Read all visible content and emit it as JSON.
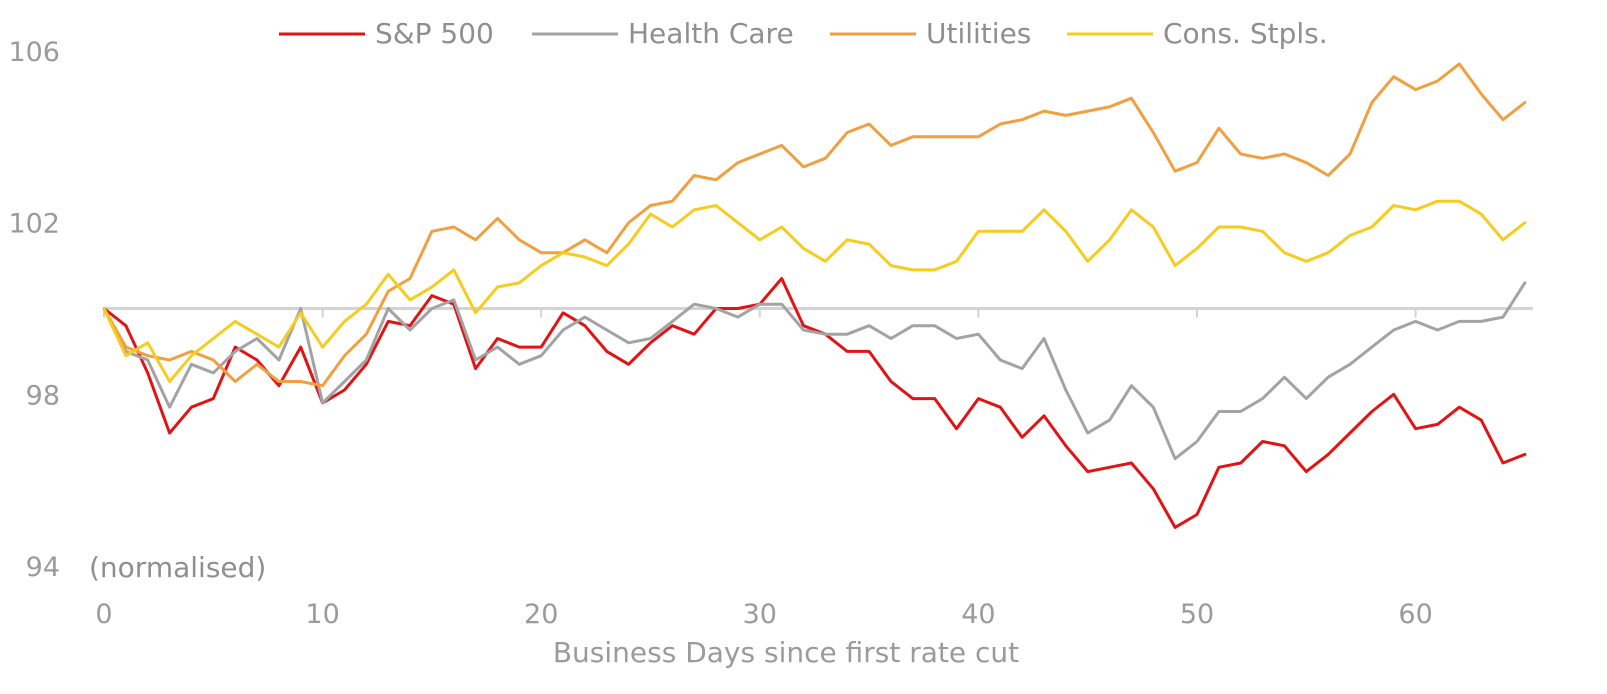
{
  "chart_data": {
    "type": "line",
    "xlabel": "Business Days since first rate cut",
    "annotation": "(normalised)",
    "xlim": [
      0,
      65
    ],
    "ylim": [
      94,
      106
    ],
    "x_ticks": [
      0,
      10,
      20,
      30,
      40,
      50,
      60
    ],
    "y_ticks": [
      94,
      98,
      102,
      106
    ],
    "baseline": 100,
    "grid": false,
    "legend_position": "top",
    "series": [
      {
        "name": "S&P 500",
        "color": "#e01414",
        "values": [
          100,
          99.6,
          98.5,
          97.1,
          97.7,
          97.9,
          99.1,
          98.8,
          98.2,
          99.1,
          97.8,
          98.1,
          98.7,
          99.7,
          99.6,
          100.3,
          100.1,
          98.6,
          99.3,
          99.1,
          99.1,
          99.9,
          99.6,
          99.0,
          98.7,
          99.2,
          99.6,
          99.4,
          100,
          100,
          100.1,
          100.7,
          99.6,
          99.4,
          99.0,
          99.0,
          98.3,
          97.9,
          97.9,
          97.2,
          97.9,
          97.7,
          97.0,
          97.5,
          96.8,
          96.2,
          96.3,
          96.4,
          95.8,
          94.9,
          95.2,
          96.3,
          96.4,
          96.9,
          96.8,
          96.2,
          96.6,
          97.1,
          97.6,
          98.0,
          97.2,
          97.3,
          97.7,
          97.4,
          96.4,
          96.6
        ]
      },
      {
        "name": "Health Care",
        "color": "#a3a3a3",
        "values": [
          100,
          99.0,
          98.8,
          97.7,
          98.7,
          98.5,
          99.0,
          99.3,
          98.8,
          100,
          97.8,
          98.3,
          98.8,
          100,
          99.5,
          100,
          100.2,
          98.8,
          99.1,
          98.7,
          98.9,
          99.5,
          99.8,
          99.5,
          99.2,
          99.3,
          99.7,
          100.1,
          100,
          99.8,
          100.1,
          100.1,
          99.5,
          99.4,
          99.4,
          99.6,
          99.3,
          99.6,
          99.6,
          99.3,
          99.4,
          98.8,
          98.6,
          99.3,
          98.1,
          97.1,
          97.4,
          98.2,
          97.7,
          96.5,
          96.9,
          97.6,
          97.6,
          97.9,
          98.4,
          97.9,
          98.4,
          98.7,
          99.1,
          99.5,
          99.7,
          99.5,
          99.7,
          99.7,
          99.8,
          100.6
        ]
      },
      {
        "name": "Utilities",
        "color": "#f0a040",
        "values": [
          100,
          99.1,
          98.9,
          98.8,
          99.0,
          98.8,
          98.3,
          98.7,
          98.3,
          98.3,
          98.2,
          98.9,
          99.4,
          100.4,
          100.7,
          101.8,
          101.9,
          101.6,
          102.1,
          101.6,
          101.3,
          101.3,
          101.6,
          101.3,
          102.0,
          102.4,
          102.5,
          103.1,
          103.0,
          103.4,
          103.6,
          103.8,
          103.3,
          103.5,
          104.1,
          104.3,
          103.8,
          104.0,
          104.0,
          104.0,
          104.0,
          104.3,
          104.4,
          104.6,
          104.5,
          104.6,
          104.7,
          104.9,
          104.1,
          103.2,
          103.4,
          104.2,
          103.6,
          103.5,
          103.6,
          103.4,
          103.1,
          103.6,
          104.8,
          105.4,
          105.1,
          105.3,
          105.7,
          105.0,
          104.4,
          104.8
        ]
      },
      {
        "name": "Cons. Stpls.",
        "color": "#f5cc1f",
        "values": [
          100,
          98.9,
          99.2,
          98.3,
          98.9,
          99.3,
          99.7,
          99.4,
          99.1,
          99.9,
          99.1,
          99.7,
          100.1,
          100.8,
          100.2,
          100.5,
          100.9,
          99.9,
          100.5,
          100.6,
          101.0,
          101.3,
          101.2,
          101.0,
          101.5,
          102.2,
          101.9,
          102.3,
          102.4,
          102.0,
          101.6,
          101.9,
          101.4,
          101.1,
          101.6,
          101.5,
          101.0,
          100.9,
          100.9,
          101.1,
          101.8,
          101.8,
          101.8,
          102.3,
          101.8,
          101.1,
          101.6,
          102.3,
          101.9,
          101.0,
          101.4,
          101.9,
          101.9,
          101.8,
          101.3,
          101.1,
          101.3,
          101.7,
          101.9,
          102.4,
          102.3,
          102.5,
          102.5,
          102.2,
          101.6,
          102.0
        ]
      }
    ]
  }
}
